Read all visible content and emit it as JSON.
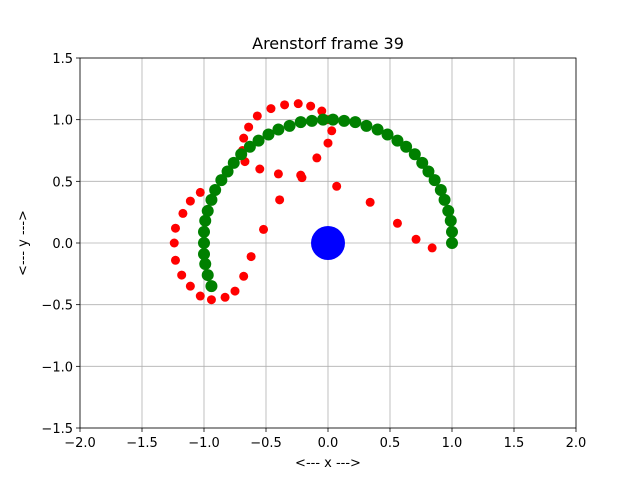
{
  "chart_data": {
    "type": "scatter",
    "title": "Arenstorf frame 39",
    "xlabel": "<---  x  --->",
    "ylabel": "<---  y  --->",
    "xlim": [
      -2.0,
      2.0
    ],
    "ylim": [
      -1.5,
      1.5
    ],
    "grid": true,
    "x_ticks": [
      -2.0,
      -1.5,
      -1.0,
      -0.5,
      0.0,
      0.5,
      1.0,
      1.5,
      2.0
    ],
    "y_ticks": [
      -1.5,
      -1.0,
      -0.5,
      0.0,
      0.5,
      1.0,
      1.5
    ],
    "x_tick_labels": [
      "−2.0",
      "−1.5",
      "−1.0",
      "−0.5",
      "0.0",
      "0.5",
      "1.0",
      "1.5",
      "2.0"
    ],
    "y_tick_labels": [
      "−1.5",
      "−1.0",
      "−0.5",
      "0.0",
      "0.5",
      "1.0",
      "1.5"
    ],
    "series": [
      {
        "color": "#ff0000",
        "marker": "small-circle",
        "points": [
          [
            -1.24,
            0.0
          ],
          [
            -1.23,
            0.12
          ],
          [
            -1.17,
            0.24
          ],
          [
            -1.11,
            0.34
          ],
          [
            -1.03,
            0.41
          ],
          [
            -0.67,
            0.66
          ],
          [
            -0.55,
            0.6
          ],
          [
            -0.4,
            0.56
          ],
          [
            -0.22,
            0.55
          ],
          [
            -0.21,
            0.53
          ],
          [
            -0.09,
            0.69
          ],
          [
            0.0,
            0.81
          ],
          [
            0.03,
            0.91
          ],
          [
            0.0,
            1.0
          ],
          [
            -0.05,
            1.07
          ],
          [
            -0.14,
            1.11
          ],
          [
            -0.24,
            1.13
          ],
          [
            -0.35,
            1.12
          ],
          [
            -0.46,
            1.09
          ],
          [
            -0.57,
            1.03
          ],
          [
            -0.64,
            0.94
          ],
          [
            -0.68,
            0.85
          ],
          [
            -0.69,
            0.75
          ],
          [
            0.07,
            0.46
          ],
          [
            0.34,
            0.33
          ],
          [
            0.56,
            0.16
          ],
          [
            0.71,
            0.03
          ],
          [
            0.84,
            -0.04
          ],
          [
            1.0,
            0.0
          ],
          [
            -1.23,
            -0.14
          ],
          [
            -1.18,
            -0.26
          ],
          [
            -1.11,
            -0.35
          ],
          [
            -1.03,
            -0.43
          ],
          [
            -0.94,
            -0.46
          ],
          [
            -0.83,
            -0.44
          ],
          [
            -0.75,
            -0.39
          ],
          [
            -0.68,
            -0.27
          ],
          [
            -0.62,
            -0.11
          ],
          [
            -0.52,
            0.11
          ],
          [
            -0.39,
            0.35
          ]
        ]
      },
      {
        "color": "#008000",
        "marker": "large-circle",
        "points": [
          [
            -0.94,
            -0.35
          ],
          [
            -0.97,
            -0.26
          ],
          [
            -0.99,
            -0.17
          ],
          [
            -1.0,
            -0.09
          ],
          [
            -1.0,
            0.0
          ],
          [
            -1.0,
            0.09
          ],
          [
            -0.99,
            0.18
          ],
          [
            -0.97,
            0.26
          ],
          [
            -0.94,
            0.35
          ],
          [
            -0.91,
            0.43
          ],
          [
            -0.86,
            0.51
          ],
          [
            -0.81,
            0.58
          ],
          [
            -0.76,
            0.65
          ],
          [
            -0.7,
            0.72
          ],
          [
            -0.63,
            0.78
          ],
          [
            -0.56,
            0.83
          ],
          [
            -0.48,
            0.88
          ],
          [
            -0.4,
            0.92
          ],
          [
            -0.31,
            0.95
          ],
          [
            -0.22,
            0.98
          ],
          [
            -0.13,
            0.99
          ],
          [
            -0.04,
            1.0
          ],
          [
            0.04,
            1.0
          ],
          [
            0.13,
            0.99
          ],
          [
            0.22,
            0.98
          ],
          [
            0.31,
            0.95
          ],
          [
            0.4,
            0.92
          ],
          [
            0.48,
            0.88
          ],
          [
            0.56,
            0.83
          ],
          [
            0.63,
            0.78
          ],
          [
            0.7,
            0.72
          ],
          [
            0.76,
            0.65
          ],
          [
            0.81,
            0.58
          ],
          [
            0.86,
            0.51
          ],
          [
            0.91,
            0.43
          ],
          [
            0.94,
            0.35
          ],
          [
            0.97,
            0.26
          ],
          [
            0.99,
            0.18
          ],
          [
            1.0,
            0.09
          ],
          [
            1.0,
            0.0
          ]
        ]
      },
      {
        "color": "#0000ff",
        "marker": "big-disc",
        "points": [
          [
            0.0,
            0.0
          ]
        ]
      }
    ]
  }
}
